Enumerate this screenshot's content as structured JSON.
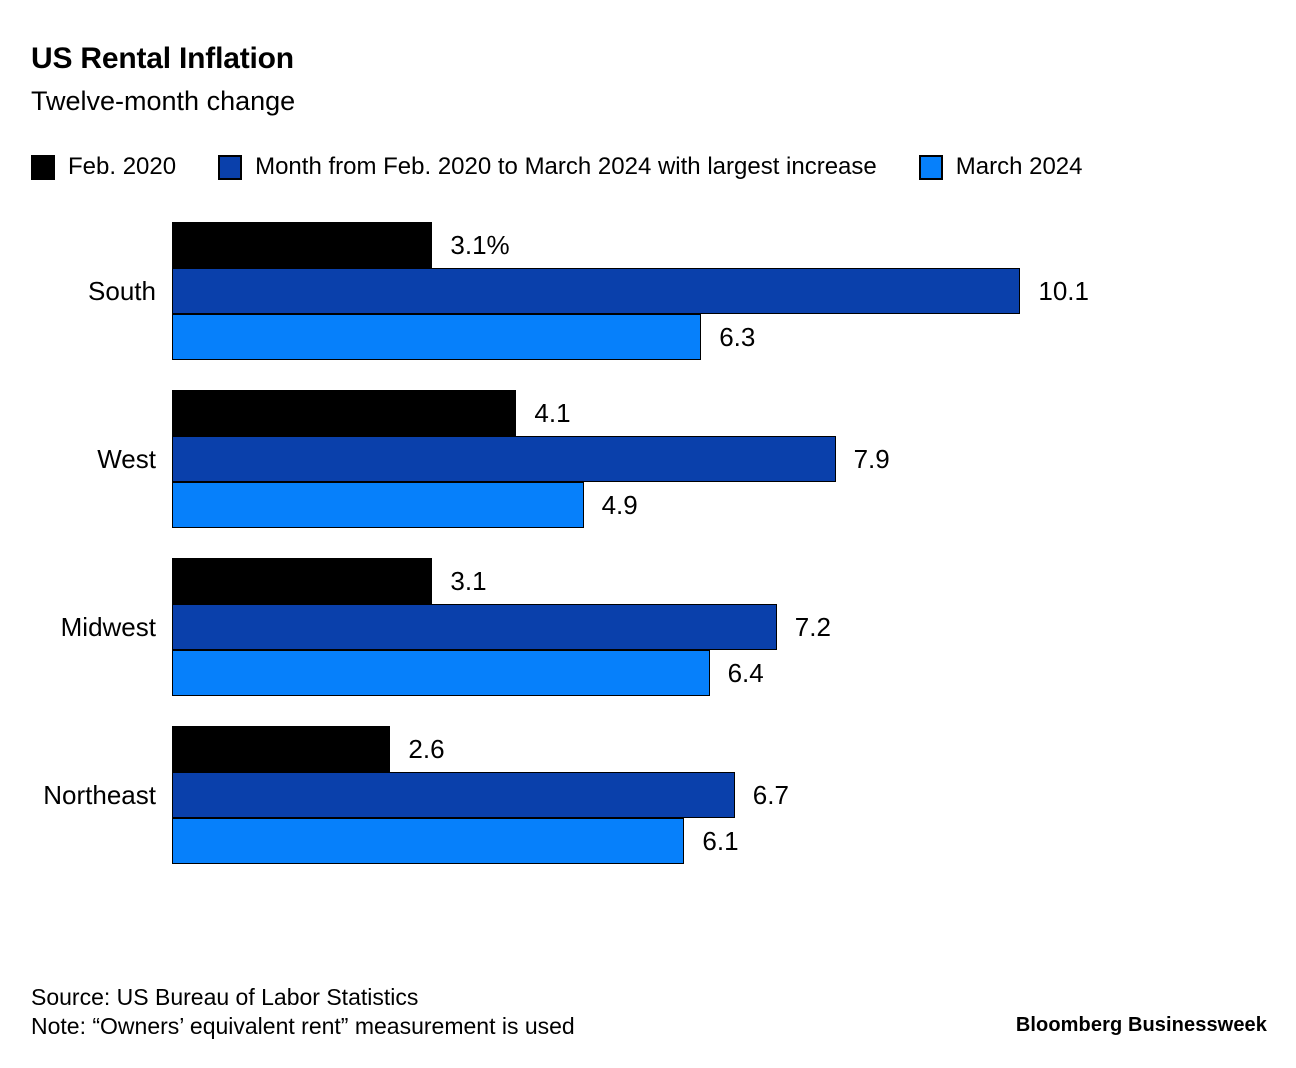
{
  "header": {
    "title": "US Rental Inflation",
    "subtitle": "Twelve-month change"
  },
  "chart_data": {
    "type": "bar",
    "orientation": "horizontal",
    "title": "US Rental Inflation",
    "subtitle": "Twelve-month change",
    "categories": [
      "South",
      "West",
      "Midwest",
      "Northeast"
    ],
    "series": [
      {
        "name": "Feb. 2020",
        "color": "#000000",
        "values": [
          3.1,
          4.1,
          3.1,
          2.6
        ],
        "labels": [
          "3.1%",
          "4.1",
          "3.1",
          "2.6"
        ]
      },
      {
        "name": "Month from Feb. 2020 to March 2024 with largest increase",
        "color": "#0a40ab",
        "values": [
          10.1,
          7.9,
          7.2,
          6.7
        ],
        "labels": [
          "10.1",
          "7.9",
          "7.2",
          "6.7"
        ]
      },
      {
        "name": "March 2024",
        "color": "#0680fb",
        "values": [
          6.3,
          4.9,
          6.4,
          6.1
        ],
        "labels": [
          "6.3",
          "4.9",
          "6.4",
          "6.1"
        ]
      }
    ],
    "value_unit": "percent",
    "xlim": [
      0,
      10.1
    ],
    "grid": false,
    "legend_position": "top"
  },
  "footer": {
    "source": "Source: US Bureau of Labor Statistics",
    "note": "Note: “Owners’ equivalent rent” measurement is used",
    "brand": "Bloomberg Businessweek"
  }
}
